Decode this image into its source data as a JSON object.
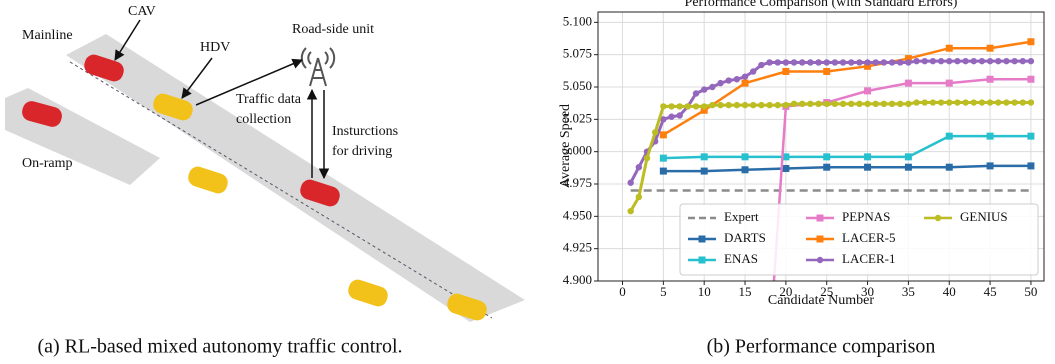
{
  "diagram": {
    "labels": [
      "Mainline",
      "CAV",
      "HDV",
      "Road-side unit",
      "Traffic data",
      "collection",
      "Insturctions",
      "for driving",
      "On-ramp"
    ],
    "caption": "(a) RL-based mixed autonomy traffic control."
  },
  "chart_data": {
    "type": "line",
    "title": "Performance Comparison (with Standard Errors)",
    "x_label": "Candidate Number",
    "y_label": "Average Speed",
    "caption": "(b) Performance comparison",
    "xlim": [
      -3,
      51.6
    ],
    "ylim": [
      4.9,
      5.108
    ],
    "xticks": [
      0,
      5,
      10,
      15,
      20,
      25,
      30,
      35,
      40,
      45,
      50
    ],
    "yticks": [
      {
        "value": 4.9,
        "label": "4.900"
      },
      {
        "value": 4.925,
        "label": "4.925"
      },
      {
        "value": 4.95,
        "label": "4.950"
      },
      {
        "value": 4.975,
        "label": "4.975"
      },
      {
        "value": 5.0,
        "label": "5.000"
      },
      {
        "value": 5.025,
        "label": "5.025"
      },
      {
        "value": 5.05,
        "label": "5.050"
      },
      {
        "value": 5.075,
        "label": "5.075"
      },
      {
        "value": 5.1,
        "label": "5.100"
      }
    ],
    "grid": true,
    "legend": "lower right",
    "series": [
      {
        "name": "Expert",
        "color": "#8c8c8c",
        "dashed": true,
        "x": [
          1,
          50
        ],
        "values": [
          4.97,
          4.97
        ]
      },
      {
        "name": "DARTS",
        "color": "#2a6ca8",
        "marker": "square",
        "x": [
          5,
          10,
          15,
          20,
          25,
          30,
          35,
          40,
          45,
          50
        ],
        "values": [
          4.985,
          4.985,
          4.986,
          4.987,
          4.988,
          4.988,
          4.988,
          4.988,
          4.989,
          4.989
        ]
      },
      {
        "name": "ENAS",
        "color": "#26c0cf",
        "marker": "square",
        "x": [
          5,
          10,
          15,
          20,
          25,
          30,
          35,
          40,
          45,
          50
        ],
        "values": [
          4.995,
          4.996,
          4.996,
          4.996,
          4.996,
          4.996,
          4.996,
          5.012,
          5.012,
          5.012
        ]
      },
      {
        "name": "PEPNAS",
        "color": "#e67bc8",
        "marker": "square",
        "x": [
          18,
          20,
          25,
          30,
          35,
          40,
          45,
          50
        ],
        "values": [
          4.85,
          5.035,
          5.038,
          5.047,
          5.053,
          5.053,
          5.056,
          5.056
        ]
      },
      {
        "name": "LACER-5",
        "color": "#ff7f0e",
        "marker": "square",
        "x": [
          5,
          10,
          15,
          20,
          25,
          30,
          35,
          40,
          45,
          50
        ],
        "values": [
          5.013,
          5.032,
          5.053,
          5.062,
          5.062,
          5.066,
          5.072,
          5.08,
          5.08,
          5.085
        ]
      },
      {
        "name": "LACER-1",
        "color": "#9467bd",
        "marker": "circle",
        "x": [
          1,
          2,
          3,
          4,
          5,
          6,
          7,
          8,
          9,
          10,
          11,
          12,
          13,
          14,
          15,
          16,
          17,
          18,
          19,
          20,
          21,
          22,
          23,
          24,
          25,
          26,
          27,
          28,
          29,
          30,
          31,
          32,
          33,
          34,
          35,
          36,
          37,
          38,
          39,
          40,
          41,
          42,
          43,
          44,
          45,
          46,
          47,
          48,
          49,
          50
        ],
        "values": [
          4.976,
          4.988,
          5.0,
          5.008,
          5.025,
          5.027,
          5.028,
          5.035,
          5.045,
          5.048,
          5.05,
          5.053,
          5.055,
          5.056,
          5.058,
          5.062,
          5.067,
          5.069,
          5.069,
          5.069,
          5.069,
          5.069,
          5.069,
          5.069,
          5.069,
          5.069,
          5.069,
          5.069,
          5.069,
          5.069,
          5.069,
          5.069,
          5.069,
          5.069,
          5.069,
          5.07,
          5.07,
          5.07,
          5.07,
          5.07,
          5.07,
          5.07,
          5.07,
          5.07,
          5.07,
          5.07,
          5.07,
          5.07,
          5.07,
          5.07
        ]
      },
      {
        "name": "GENIUS",
        "color": "#bcbd22",
        "marker": "circle",
        "x": [
          1,
          2,
          3,
          4,
          5,
          6,
          7,
          8,
          9,
          10,
          11,
          12,
          13,
          14,
          15,
          16,
          17,
          18,
          19,
          20,
          21,
          22,
          23,
          24,
          25,
          26,
          27,
          28,
          29,
          30,
          31,
          32,
          33,
          34,
          35,
          36,
          37,
          38,
          39,
          40,
          41,
          42,
          43,
          44,
          45,
          46,
          47,
          48,
          49,
          50
        ],
        "values": [
          4.954,
          4.965,
          4.995,
          5.015,
          5.035,
          5.035,
          5.035,
          5.035,
          5.035,
          5.035,
          5.036,
          5.036,
          5.036,
          5.036,
          5.036,
          5.036,
          5.036,
          5.036,
          5.036,
          5.036,
          5.037,
          5.037,
          5.037,
          5.037,
          5.037,
          5.037,
          5.037,
          5.037,
          5.037,
          5.037,
          5.037,
          5.037,
          5.037,
          5.037,
          5.037,
          5.038,
          5.038,
          5.038,
          5.038,
          5.038,
          5.038,
          5.038,
          5.038,
          5.038,
          5.038,
          5.038,
          5.038,
          5.038,
          5.038,
          5.038
        ]
      }
    ]
  }
}
